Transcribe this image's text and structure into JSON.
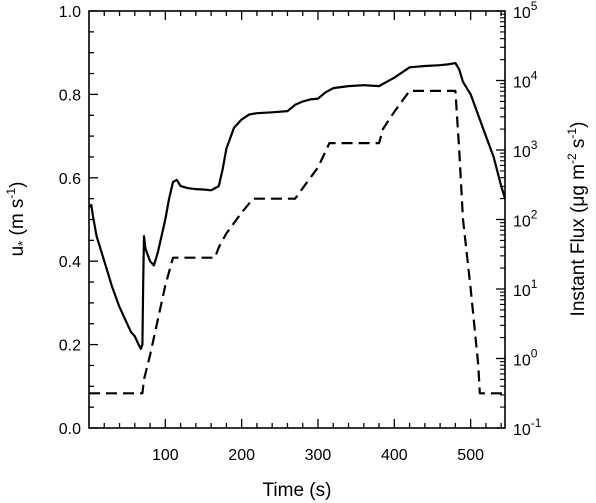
{
  "chart_data": {
    "type": "line",
    "xlabel": "Time (s)",
    "ylabel_left": {
      "base": "u",
      "star": "*",
      "unit_open": " (m s",
      "exp": "-1",
      "close": ")"
    },
    "ylabel_right": {
      "text": "Instant Flux (μg m",
      "exp1": "-2",
      "mid": " s",
      "exp2": "-1",
      "close": ")"
    },
    "xlim": [
      0,
      545
    ],
    "ylim_left": [
      0,
      1.0
    ],
    "ylim_right_log10": [
      -1,
      5
    ],
    "x_ticks": [
      100,
      200,
      300,
      400,
      500
    ],
    "y_left_ticks": [
      "0.0",
      "0.2",
      "0.4",
      "0.6",
      "0.8",
      "1.0"
    ],
    "y_right_ticks": [
      {
        "base": "10",
        "exp": "-1"
      },
      {
        "base": "10",
        "exp": "0"
      },
      {
        "base": "10",
        "exp": "1"
      },
      {
        "base": "10",
        "exp": "2"
      },
      {
        "base": "10",
        "exp": "3"
      },
      {
        "base": "10",
        "exp": "4"
      },
      {
        "base": "10",
        "exp": "5"
      }
    ],
    "series": [
      {
        "style": "solid",
        "axis": "left",
        "x": [
          0,
          3,
          5,
          10,
          20,
          30,
          40,
          50,
          55,
          60,
          65,
          68,
          70,
          71,
          72,
          74,
          76,
          80,
          85,
          90,
          95,
          100,
          105,
          110,
          115,
          120,
          130,
          140,
          150,
          160,
          170,
          175,
          180,
          190,
          200,
          210,
          220,
          240,
          260,
          270,
          280,
          290,
          300,
          310,
          320,
          340,
          360,
          380,
          400,
          420,
          440,
          460,
          470,
          480,
          485,
          490,
          500,
          510,
          520,
          530,
          540,
          545
        ],
        "y": [
          0.53,
          0.535,
          0.51,
          0.46,
          0.4,
          0.34,
          0.29,
          0.25,
          0.23,
          0.22,
          0.2,
          0.19,
          0.2,
          0.35,
          0.46,
          0.43,
          0.42,
          0.4,
          0.39,
          0.42,
          0.46,
          0.5,
          0.55,
          0.59,
          0.595,
          0.58,
          0.575,
          0.573,
          0.572,
          0.57,
          0.58,
          0.62,
          0.67,
          0.72,
          0.74,
          0.752,
          0.755,
          0.757,
          0.76,
          0.775,
          0.783,
          0.788,
          0.79,
          0.805,
          0.815,
          0.82,
          0.822,
          0.82,
          0.84,
          0.865,
          0.868,
          0.87,
          0.872,
          0.875,
          0.86,
          0.83,
          0.8,
          0.75,
          0.7,
          0.65,
          0.58,
          0.55
        ]
      },
      {
        "style": "dashed",
        "axis": "right_log10",
        "x": [
          0,
          70,
          72,
          80,
          90,
          100,
          110,
          115,
          165,
          170,
          180,
          200,
          215,
          220,
          270,
          280,
          300,
          315,
          320,
          380,
          385,
          400,
          420,
          425,
          480,
          485,
          490,
          500,
          510,
          512,
          518,
          545
        ],
        "y": [
          -0.5,
          -0.5,
          -0.3,
          0.05,
          0.55,
          1.05,
          1.45,
          1.45,
          1.45,
          1.6,
          1.8,
          2.1,
          2.3,
          2.3,
          2.3,
          2.45,
          2.75,
          3.1,
          3.1,
          3.1,
          3.3,
          3.55,
          3.85,
          3.85,
          3.85,
          3.0,
          2.0,
          1.0,
          -0.1,
          -0.5,
          -0.5,
          -0.5
        ]
      }
    ]
  }
}
